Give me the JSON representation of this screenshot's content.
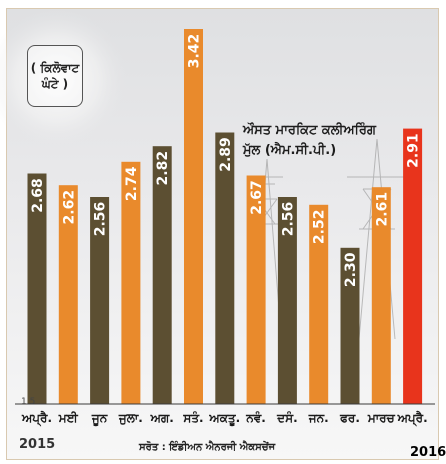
{
  "unit_label": {
    "line1": "( ਕਿਲੋਵਾਟ",
    "line2": "ਘੰਟੇ )"
  },
  "title": {
    "line1": "ਔਸਤ ਮਾਰਕਿਟ ਕਲੀਅਰਿੰਗ",
    "line2": "ਮੁੱਲ (ਐਮ.ਸੀ.ਪੀ.)"
  },
  "source_note": "ਸਰੋਤ : ਇੰਡੀਅਨ ਐਨਰਜੀ ਐਕਸਚੇਂਜ",
  "axis_min_label": "1.5",
  "year_start": "2015",
  "year_end": "2016",
  "colors": {
    "olive_bar": "#5c4f32",
    "orange_bar": "#e98a2c",
    "highlight_bar": "#e8341c",
    "value_text": "#ffffff"
  },
  "chart_data": {
    "type": "bar",
    "categories": [
      "ਅਪ੍ਰੈ.",
      "ਮਈ",
      "ਜੂਨ",
      "ਜੁਲਾ.",
      "ਅਗ.",
      "ਸਤੰ.",
      "ਅਕਤੂ.",
      "ਨਵੰ.",
      "ਦਸੰ.",
      "ਜਨ.",
      "ਫਰ.",
      "ਮਾਰਚ",
      "ਅਪ੍ਰੈ."
    ],
    "values": [
      2.68,
      2.62,
      2.56,
      2.74,
      2.82,
      3.42,
      2.89,
      2.67,
      2.56,
      2.52,
      2.3,
      2.61,
      2.91
    ],
    "value_labels": [
      "2.68",
      "2.62",
      "2.56",
      "2.74",
      "2.82",
      "3.42",
      "2.89",
      "2.67",
      "2.56",
      "2.52",
      "2.30",
      "2.61",
      "2.91"
    ],
    "bar_colors": [
      "olive",
      "orange",
      "olive",
      "orange",
      "olive",
      "orange",
      "olive",
      "orange",
      "olive",
      "orange",
      "olive",
      "orange",
      "highlight"
    ],
    "ylim": [
      1.5,
      3.42
    ],
    "title": "ਔਸਤ ਮਾਰਕਿਟ ਕਲੀਅਰਿੰਗ ਮੁੱਲ (ਐਮ.ਸੀ.ਪੀ.)",
    "ylabel": "( ਕਿਲੋਵਾਟ ਘੰਟੇ )",
    "xlabel": "",
    "grid": false,
    "legend": "none"
  }
}
